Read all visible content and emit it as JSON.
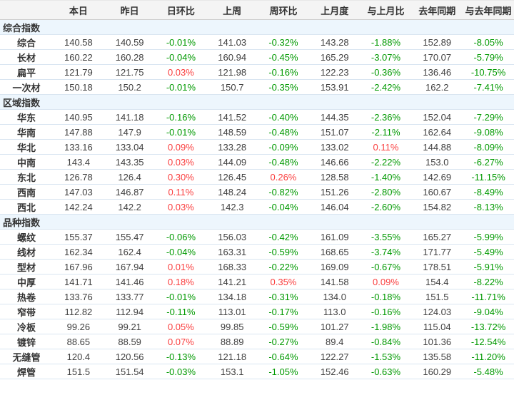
{
  "colors": {
    "positive_change": "#fa3e3e",
    "negative_change": "#009900",
    "header_bg": "#f4f4f4",
    "section_bg": "#edf6fd",
    "row_border": "#d9e5f1",
    "text": "#404040"
  },
  "table": {
    "columns": [
      "",
      "本日",
      "昨日",
      "日环比",
      "上周",
      "周环比",
      "上月度",
      "与上月比",
      "去年同期",
      "与去年同期"
    ],
    "sections": [
      {
        "title": "综合指数",
        "rows": [
          {
            "label": "综合",
            "values": [
              "140.58",
              "140.59",
              "-0.01%",
              "141.03",
              "-0.32%",
              "143.28",
              "-1.88%",
              "152.89",
              "-8.05%"
            ]
          },
          {
            "label": "长材",
            "values": [
              "160.22",
              "160.28",
              "-0.04%",
              "160.94",
              "-0.45%",
              "165.29",
              "-3.07%",
              "170.07",
              "-5.79%"
            ]
          },
          {
            "label": "扁平",
            "values": [
              "121.79",
              "121.75",
              "0.03%",
              "121.98",
              "-0.16%",
              "122.23",
              "-0.36%",
              "136.46",
              "-10.75%"
            ]
          },
          {
            "label": "一次材",
            "values": [
              "150.18",
              "150.2",
              "-0.01%",
              "150.7",
              "-0.35%",
              "153.91",
              "-2.42%",
              "162.2",
              "-7.41%"
            ]
          }
        ]
      },
      {
        "title": "区域指数",
        "rows": [
          {
            "label": "华东",
            "values": [
              "140.95",
              "141.18",
              "-0.16%",
              "141.52",
              "-0.40%",
              "144.35",
              "-2.36%",
              "152.04",
              "-7.29%"
            ]
          },
          {
            "label": "华南",
            "values": [
              "147.88",
              "147.9",
              "-0.01%",
              "148.59",
              "-0.48%",
              "151.07",
              "-2.11%",
              "162.64",
              "-9.08%"
            ]
          },
          {
            "label": "华北",
            "values": [
              "133.16",
              "133.04",
              "0.09%",
              "133.28",
              "-0.09%",
              "133.02",
              "0.11%",
              "144.88",
              "-8.09%"
            ]
          },
          {
            "label": "中南",
            "values": [
              "143.4",
              "143.35",
              "0.03%",
              "144.09",
              "-0.48%",
              "146.66",
              "-2.22%",
              "153.0",
              "-6.27%"
            ]
          },
          {
            "label": "东北",
            "values": [
              "126.78",
              "126.4",
              "0.30%",
              "126.45",
              "0.26%",
              "128.58",
              "-1.40%",
              "142.69",
              "-11.15%"
            ]
          },
          {
            "label": "西南",
            "values": [
              "147.03",
              "146.87",
              "0.11%",
              "148.24",
              "-0.82%",
              "151.26",
              "-2.80%",
              "160.67",
              "-8.49%"
            ]
          },
          {
            "label": "西北",
            "values": [
              "142.24",
              "142.2",
              "0.03%",
              "142.3",
              "-0.04%",
              "146.04",
              "-2.60%",
              "154.82",
              "-8.13%"
            ]
          }
        ]
      },
      {
        "title": "品种指数",
        "rows": [
          {
            "label": "螺纹",
            "values": [
              "155.37",
              "155.47",
              "-0.06%",
              "156.03",
              "-0.42%",
              "161.09",
              "-3.55%",
              "165.27",
              "-5.99%"
            ]
          },
          {
            "label": "线材",
            "values": [
              "162.34",
              "162.4",
              "-0.04%",
              "163.31",
              "-0.59%",
              "168.65",
              "-3.74%",
              "171.77",
              "-5.49%"
            ]
          },
          {
            "label": "型材",
            "values": [
              "167.96",
              "167.94",
              "0.01%",
              "168.33",
              "-0.22%",
              "169.09",
              "-0.67%",
              "178.51",
              "-5.91%"
            ]
          },
          {
            "label": "中厚",
            "values": [
              "141.71",
              "141.46",
              "0.18%",
              "141.21",
              "0.35%",
              "141.58",
              "0.09%",
              "154.4",
              "-8.22%"
            ]
          },
          {
            "label": "热卷",
            "values": [
              "133.76",
              "133.77",
              "-0.01%",
              "134.18",
              "-0.31%",
              "134.0",
              "-0.18%",
              "151.5",
              "-11.71%"
            ]
          },
          {
            "label": "窄带",
            "values": [
              "112.82",
              "112.94",
              "-0.11%",
              "113.01",
              "-0.17%",
              "113.0",
              "-0.16%",
              "124.03",
              "-9.04%"
            ]
          },
          {
            "label": "冷板",
            "values": [
              "99.26",
              "99.21",
              "0.05%",
              "99.85",
              "-0.59%",
              "101.27",
              "-1.98%",
              "115.04",
              "-13.72%"
            ]
          },
          {
            "label": "镀锌",
            "values": [
              "88.65",
              "88.59",
              "0.07%",
              "88.89",
              "-0.27%",
              "89.4",
              "-0.84%",
              "101.36",
              "-12.54%"
            ]
          },
          {
            "label": "无缝管",
            "values": [
              "120.4",
              "120.56",
              "-0.13%",
              "121.18",
              "-0.64%",
              "122.27",
              "-1.53%",
              "135.58",
              "-11.20%"
            ]
          },
          {
            "label": "焊管",
            "values": [
              "151.5",
              "151.54",
              "-0.03%",
              "153.1",
              "-1.05%",
              "152.46",
              "-0.63%",
              "160.29",
              "-5.48%"
            ]
          }
        ]
      }
    ]
  }
}
